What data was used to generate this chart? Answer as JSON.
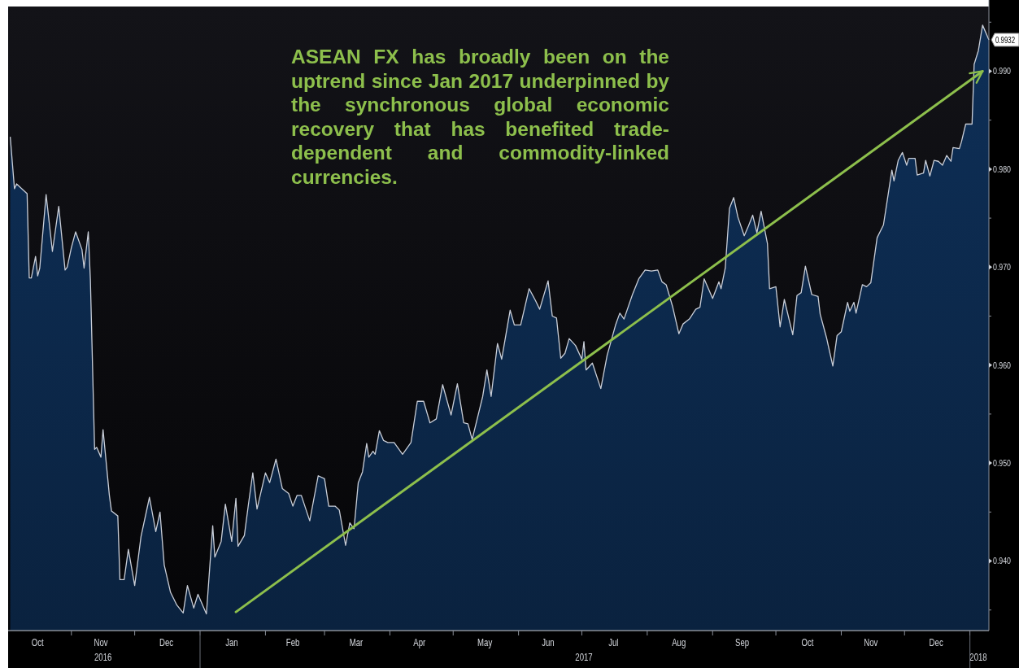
{
  "chart_data": {
    "type": "area",
    "x": [
      "2016-10-03",
      "2016-10-05",
      "2016-10-06",
      "2016-10-09",
      "2016-10-11",
      "2016-10-12",
      "2016-10-13",
      "2016-10-15",
      "2016-10-16",
      "2016-10-17",
      "2016-10-20",
      "2016-10-23",
      "2016-10-26",
      "2016-10-29",
      "2016-10-30",
      "2016-11-01",
      "2016-11-03",
      "2016-11-06",
      "2016-11-07",
      "2016-11-09",
      "2016-11-10",
      "2016-11-12",
      "2016-11-13",
      "2016-11-15",
      "2016-11-16",
      "2016-11-19",
      "2016-11-20",
      "2016-11-23",
      "2016-11-24",
      "2016-11-26",
      "2016-11-28",
      "2016-12-01",
      "2016-12-04",
      "2016-12-08",
      "2016-12-11",
      "2016-12-13",
      "2016-12-15",
      "2016-12-18",
      "2016-12-21",
      "2016-12-24",
      "2016-12-26",
      "2016-12-29",
      "2016-12-31",
      "2017-01-04",
      "2017-01-07",
      "2017-01-08",
      "2017-01-11",
      "2017-01-13",
      "2017-01-16",
      "2017-01-18",
      "2017-01-19",
      "2017-01-22",
      "2017-01-24",
      "2017-01-26",
      "2017-01-28",
      "2017-02-01",
      "2017-02-03",
      "2017-02-06",
      "2017-02-09",
      "2017-02-12",
      "2017-02-14",
      "2017-02-16",
      "2017-02-18",
      "2017-02-22",
      "2017-02-26",
      "2017-03-01",
      "2017-03-03",
      "2017-03-06",
      "2017-03-08",
      "2017-03-11",
      "2017-03-13",
      "2017-03-15",
      "2017-03-17",
      "2017-03-19",
      "2017-03-21",
      "2017-03-22",
      "2017-03-24",
      "2017-03-25",
      "2017-03-27",
      "2017-03-29",
      "2017-03-31",
      "2017-04-03",
      "2017-04-07",
      "2017-04-11",
      "2017-04-14",
      "2017-04-17",
      "2017-04-20",
      "2017-04-23",
      "2017-04-26",
      "2017-04-30",
      "2017-05-03",
      "2017-05-06",
      "2017-05-08",
      "2017-05-10",
      "2017-05-15",
      "2017-05-17",
      "2017-05-19",
      "2017-05-22",
      "2017-05-24",
      "2017-05-28",
      "2017-05-30",
      "2017-06-02",
      "2017-06-06",
      "2017-06-09",
      "2017-06-11",
      "2017-06-15",
      "2017-06-17",
      "2017-06-19",
      "2017-06-21",
      "2017-06-23",
      "2017-06-25",
      "2017-06-28",
      "2017-07-01",
      "2017-07-02",
      "2017-07-03",
      "2017-07-06",
      "2017-07-10",
      "2017-07-13",
      "2017-07-17",
      "2017-07-19",
      "2017-07-21",
      "2017-07-25",
      "2017-07-28",
      "2017-07-31",
      "2017-08-03",
      "2017-08-06",
      "2017-08-08",
      "2017-08-10",
      "2017-08-13",
      "2017-08-16",
      "2017-08-18",
      "2017-08-21",
      "2017-08-24",
      "2017-08-26",
      "2017-08-28",
      "2017-09-01",
      "2017-09-04",
      "2017-09-05",
      "2017-09-07",
      "2017-09-09",
      "2017-09-11",
      "2017-09-13",
      "2017-09-16",
      "2017-09-18",
      "2017-09-20",
      "2017-09-22",
      "2017-09-24",
      "2017-09-27",
      "2017-09-28",
      "2017-10-01",
      "2017-10-03",
      "2017-10-05",
      "2017-10-09",
      "2017-10-11",
      "2017-10-13",
      "2017-10-15",
      "2017-10-18",
      "2017-10-21",
      "2017-10-22",
      "2017-10-25",
      "2017-10-28",
      "2017-10-30",
      "2017-11-01",
      "2017-11-04",
      "2017-11-05",
      "2017-11-07",
      "2017-11-08",
      "2017-11-11",
      "2017-11-13",
      "2017-11-15",
      "2017-11-18",
      "2017-11-21",
      "2017-11-25",
      "2017-11-26",
      "2017-11-28",
      "2017-11-30",
      "2017-12-02",
      "2017-12-03",
      "2017-12-06",
      "2017-12-07",
      "2017-12-10",
      "2017-12-11",
      "2017-12-13",
      "2017-12-15",
      "2017-12-17",
      "2017-12-19",
      "2017-12-21",
      "2017-12-23",
      "2017-12-24",
      "2017-12-27",
      "2017-12-28",
      "2017-12-30",
      "2018-01-02",
      "2018-01-03",
      "2018-01-05",
      "2018-01-07",
      "2018-01-10"
    ],
    "series": [
      {
        "color": "#0d2a4e",
        "values": [
          0.9833,
          0.978,
          0.9785,
          0.9779,
          0.9775,
          0.9689,
          0.9689,
          0.9711,
          0.9691,
          0.9699,
          0.9774,
          0.9716,
          0.9762,
          0.9697,
          0.97,
          0.972,
          0.9736,
          0.9718,
          0.9699,
          0.9736,
          0.9687,
          0.9514,
          0.9516,
          0.9506,
          0.9534,
          0.9467,
          0.9451,
          0.9446,
          0.9381,
          0.9381,
          0.9412,
          0.9375,
          0.9425,
          0.9465,
          0.943,
          0.945,
          0.9396,
          0.9368,
          0.9355,
          0.9347,
          0.9375,
          0.9352,
          0.9366,
          0.9346,
          0.9436,
          0.9404,
          0.942,
          0.9458,
          0.942,
          0.9464,
          0.9415,
          0.9426,
          0.9459,
          0.949,
          0.9453,
          0.949,
          0.948,
          0.9504,
          0.9474,
          0.9469,
          0.9456,
          0.9467,
          0.9467,
          0.9441,
          0.9487,
          0.9484,
          0.9456,
          0.9456,
          0.9452,
          0.9416,
          0.9439,
          0.9433,
          0.948,
          0.9491,
          0.952,
          0.9506,
          0.9512,
          0.9509,
          0.9533,
          0.9523,
          0.9521,
          0.9521,
          0.9509,
          0.9521,
          0.9563,
          0.9563,
          0.9541,
          0.9545,
          0.958,
          0.9549,
          0.9581,
          0.9541,
          0.954,
          0.9524,
          0.9568,
          0.9595,
          0.9568,
          0.9622,
          0.9606,
          0.9656,
          0.9641,
          0.9641,
          0.9678,
          0.9666,
          0.9657,
          0.9686,
          0.965,
          0.9648,
          0.9607,
          0.9612,
          0.9627,
          0.962,
          0.9606,
          0.9624,
          0.9595,
          0.9602,
          0.9576,
          0.961,
          0.9641,
          0.9653,
          0.9647,
          0.9672,
          0.9688,
          0.9697,
          0.9696,
          0.9697,
          0.9685,
          0.9682,
          0.966,
          0.9632,
          0.9642,
          0.9647,
          0.9657,
          0.9659,
          0.9688,
          0.9668,
          0.9685,
          0.9678,
          0.9699,
          0.976,
          0.9771,
          0.9751,
          0.9732,
          0.9742,
          0.9753,
          0.9735,
          0.9757,
          0.9724,
          0.9678,
          0.968,
          0.9639,
          0.9667,
          0.9631,
          0.9671,
          0.9674,
          0.9701,
          0.9672,
          0.967,
          0.9652,
          0.9628,
          0.9599,
          0.963,
          0.9634,
          0.9664,
          0.9655,
          0.9664,
          0.9653,
          0.9682,
          0.968,
          0.9684,
          0.973,
          0.9743,
          0.9799,
          0.9788,
          0.9809,
          0.9817,
          0.9804,
          0.9811,
          0.9811,
          0.9794,
          0.9796,
          0.9809,
          0.9793,
          0.9809,
          0.9808,
          0.9804,
          0.9814,
          0.9808,
          0.9822,
          0.9821,
          0.9828,
          0.9846,
          0.9846,
          0.9907,
          0.9921,
          0.9947,
          0.9932
        ]
      },
      {
        "type": "line",
        "color": "#8dbf4c",
        "x": [
          "2017-01-18",
          "2018-01-07"
        ],
        "values": [
          0.9348,
          0.99
        ]
      }
    ],
    "xlim": [
      "2016-10-02",
      "2018-01-10"
    ],
    "xticks": [
      {
        "value": "2016-11-01",
        "label": null
      },
      {
        "value": "2016-12-01",
        "label": null
      },
      {
        "value": "2017-01-01",
        "label": null
      },
      {
        "value": "2017-02-01",
        "label": null
      },
      {
        "value": "2017-03-01",
        "label": null
      },
      {
        "value": "2017-04-01",
        "label": null
      },
      {
        "value": "2017-05-01",
        "label": null
      },
      {
        "value": "2017-06-01",
        "label": null
      },
      {
        "value": "2017-07-01",
        "label": null
      },
      {
        "value": "2017-08-01",
        "label": null
      },
      {
        "value": "2017-09-01",
        "label": null
      },
      {
        "value": "2017-10-01",
        "label": null
      },
      {
        "value": "2017-11-01",
        "label": null
      },
      {
        "value": "2017-12-01",
        "label": null
      },
      {
        "value": "2018-01-01",
        "label": null
      },
      {
        "value": "2016-10-16",
        "label": "Oct"
      },
      {
        "value": "2016-11-15",
        "label": "Nov"
      },
      {
        "value": "2016-12-16",
        "label": "Dec"
      },
      {
        "value": "2017-01-16",
        "label": "Jan"
      },
      {
        "value": "2017-02-14",
        "label": "Feb"
      },
      {
        "value": "2017-03-16",
        "label": "Mar"
      },
      {
        "value": "2017-04-15",
        "label": "Apr"
      },
      {
        "value": "2017-05-16",
        "label": "May"
      },
      {
        "value": "2017-06-15",
        "label": "Jun"
      },
      {
        "value": "2017-07-16",
        "label": "Jul"
      },
      {
        "value": "2017-08-16",
        "label": "Aug"
      },
      {
        "value": "2017-09-15",
        "label": "Sep"
      },
      {
        "value": "2017-10-16",
        "label": "Oct"
      },
      {
        "value": "2017-11-15",
        "label": "Nov"
      },
      {
        "value": "2017-12-16",
        "label": "Dec"
      }
    ],
    "x2lim": [
      "2016-10-02",
      "2018-01-10"
    ],
    "x2ticks": [
      {
        "value": "2016-11-16",
        "label": "2016"
      },
      {
        "value": "2017-07-02",
        "label": "2017"
      },
      {
        "value": "2018-01-05",
        "label": "2018"
      }
    ],
    "ylim": [
      0.9329,
      0.9966
    ],
    "yticks": [
      {
        "value": 0.935,
        "label": null
      },
      {
        "value": 0.94,
        "label": "0.940"
      },
      {
        "value": 0.945,
        "label": null
      },
      {
        "value": 0.95,
        "label": "0.950"
      },
      {
        "value": 0.955,
        "label": null
      },
      {
        "value": 0.96,
        "label": "0.960"
      },
      {
        "value": 0.965,
        "label": null
      },
      {
        "value": 0.97,
        "label": "0.970"
      },
      {
        "value": 0.975,
        "label": null
      },
      {
        "value": 0.98,
        "label": "0.980"
      },
      {
        "value": 0.985,
        "label": null
      },
      {
        "value": 0.99,
        "label": "0.990"
      },
      {
        "value": 0.995,
        "label": null
      }
    ],
    "annotations": [
      "ASEAN FX has broadly been on the uptrend since Jan 2017 underpinned by the synchronous global economic recovery that has benefited trade-dependent and commodity-linked currencies.",
      {
        "text": "0.9932",
        "x": "2018-01-10",
        "y": 0.9932
      }
    ]
  }
}
